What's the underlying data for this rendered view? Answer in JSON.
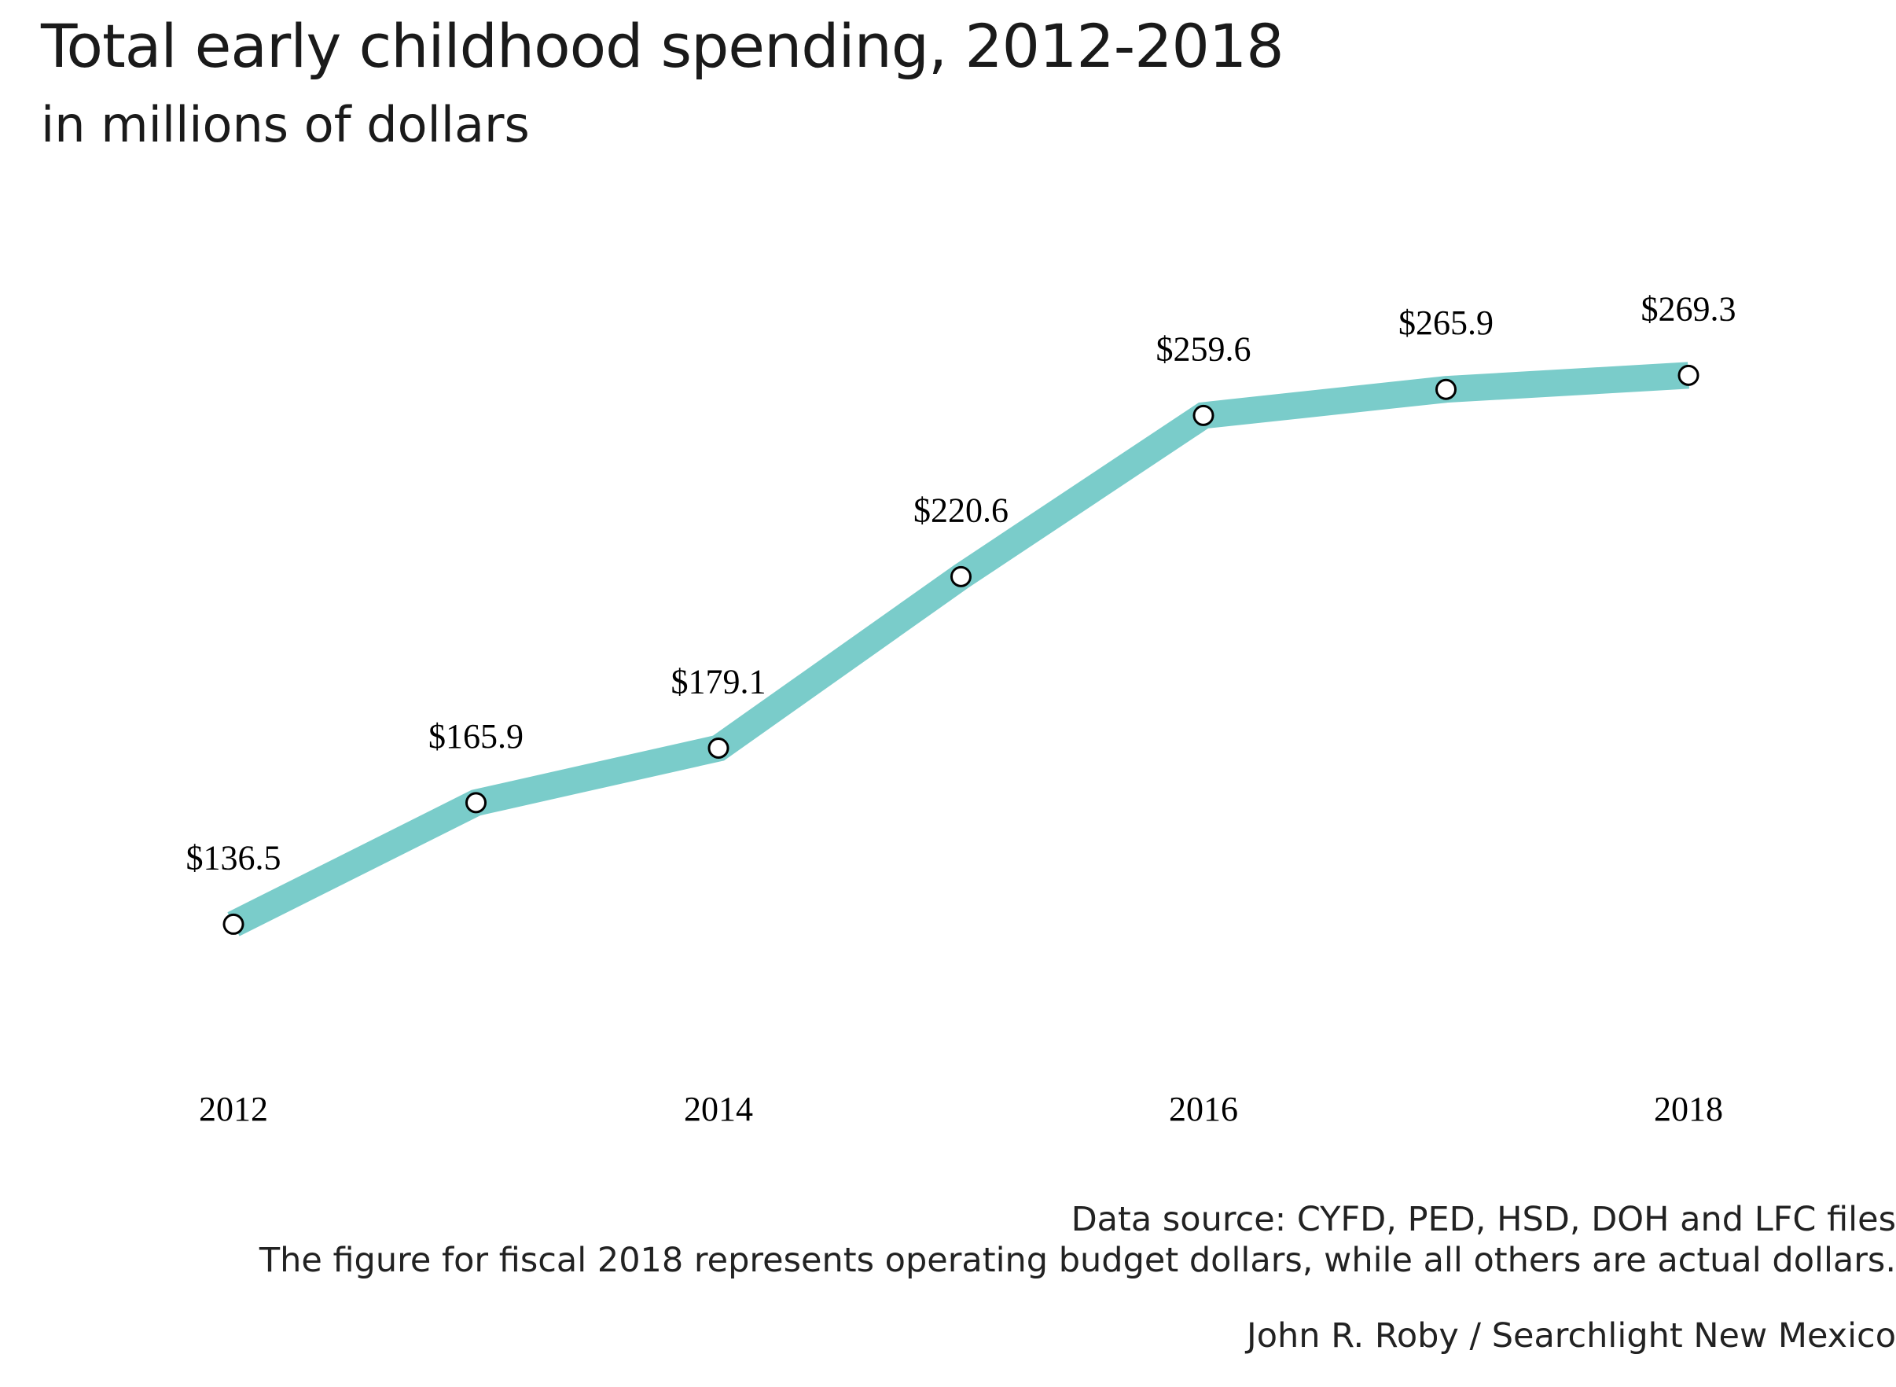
{
  "chart_data": {
    "type": "line",
    "title": "Total early childhood spending, 2012-2018",
    "subtitle": "in millions of dollars",
    "x": [
      2012,
      2013,
      2014,
      2015,
      2016,
      2017,
      2018
    ],
    "values": [
      136.5,
      165.9,
      179.1,
      220.6,
      259.6,
      265.9,
      269.3
    ],
    "data_labels": [
      "$136.5",
      "$165.9",
      "$179.1",
      "$220.6",
      "$259.6",
      "$265.9",
      "$269.3"
    ],
    "x_tick_labels": [
      "2012",
      "2014",
      "2016",
      "2018"
    ],
    "xlabel": "",
    "ylabel": "",
    "grid": false,
    "line_color": "#7accca",
    "marker_fill": "#ffffff",
    "marker_stroke": "#000000",
    "ylim": [
      105,
      300
    ]
  },
  "notes": {
    "source": "Data source: CYFD, PED, HSD, DOH and LFC files",
    "footnote": "The figure for fiscal 2018 represents operating budget dollars, while all others are actual dollars.",
    "credit": "John R. Roby / Searchlight New Mexico"
  }
}
